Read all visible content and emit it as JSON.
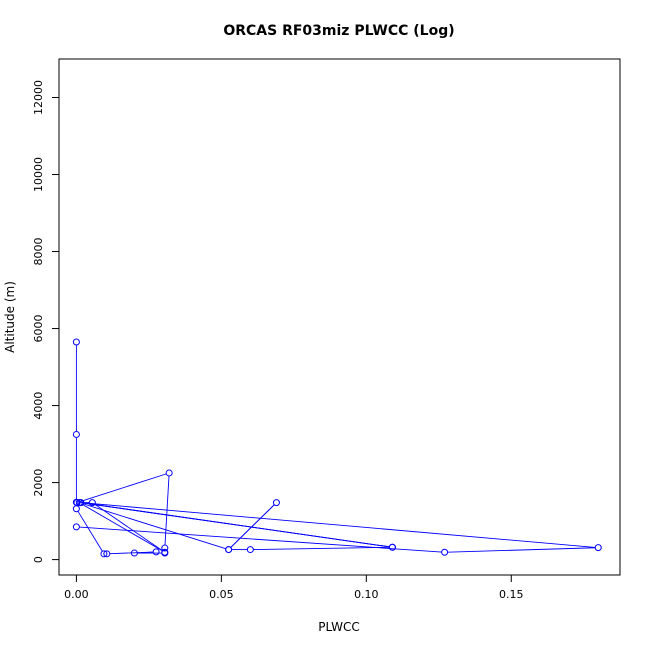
{
  "chart_data": {
    "type": "line",
    "title": "ORCAS RF03miz PLWCC (Log)",
    "xlabel": "PLWCC",
    "ylabel": "Altitude (m)",
    "xlim": [
      -0.006,
      0.1875
    ],
    "ylim": [
      -400,
      13000
    ],
    "xticks": [
      0.0,
      0.05,
      0.1,
      0.15
    ],
    "xtick_labels": [
      "0.00",
      "0.05",
      "0.10",
      "0.15"
    ],
    "yticks": [
      0,
      2000,
      4000,
      6000,
      8000,
      10000,
      12000
    ],
    "ytick_labels": [
      "0",
      "2000",
      "4000",
      "6000",
      "8000",
      "10000",
      "12000"
    ],
    "grid": false,
    "series": [
      {
        "color": "#0000ff",
        "marker": "open-circle",
        "x": [
          0.0,
          0.0,
          0.0,
          0.0,
          0.0095,
          0.0105,
          0.0275,
          0.02,
          0.0305,
          0.0305,
          0.032,
          0.0002,
          0.0055,
          0.0305,
          0.001,
          0.0525,
          0.069,
          0.0525,
          0.06,
          0.109,
          0.0015,
          0.109,
          0.0015,
          0.18,
          0.127,
          0.0
        ],
        "y": [
          5650,
          3250,
          1490,
          1320,
          150,
          150,
          200,
          170,
          170,
          300,
          2250,
          1480,
          1480,
          190,
          1480,
          260,
          1480,
          260,
          260,
          320,
          1480,
          320,
          1480,
          310,
          190,
          850
        ]
      }
    ]
  }
}
